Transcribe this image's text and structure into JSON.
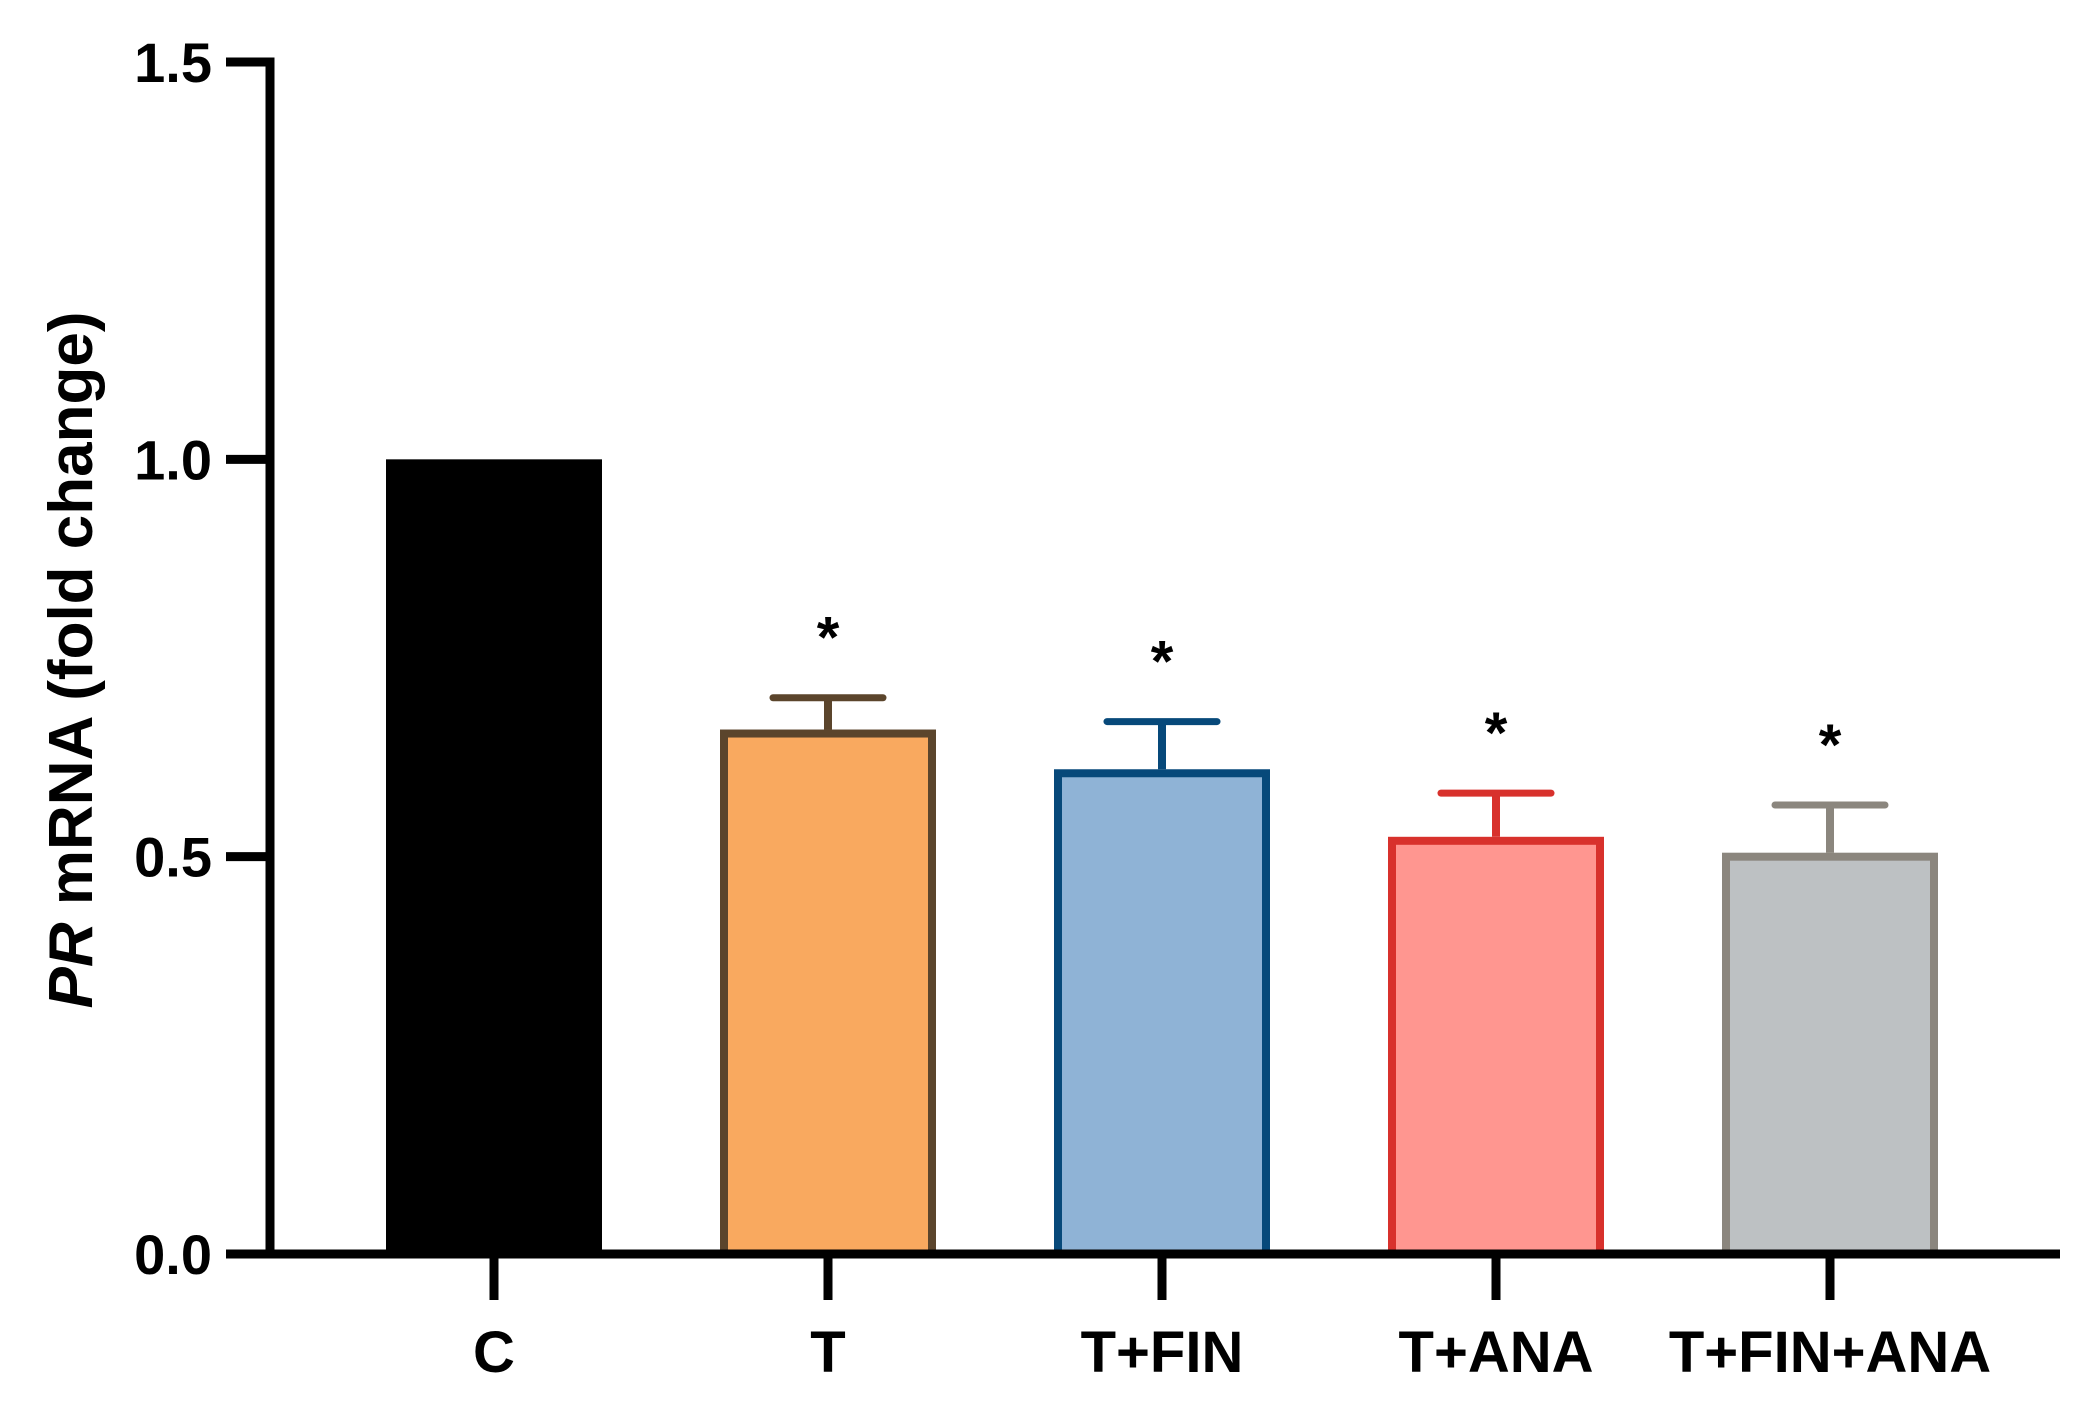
{
  "chart_data": {
    "type": "bar",
    "ylabel_italic": "PR",
    "ylabel_rest": " mRNA (fold change)",
    "ylim": [
      0,
      1.5
    ],
    "yticks": [
      {
        "value": 0.0,
        "label": "0.0"
      },
      {
        "value": 0.5,
        "label": "0.5"
      },
      {
        "value": 1.0,
        "label": "1.0"
      },
      {
        "value": 1.5,
        "label": "1.5"
      }
    ],
    "categories": [
      "C",
      "T",
      "T+FIN",
      "T+ANA",
      "T+FIN+ANA"
    ],
    "values": [
      1.0,
      0.66,
      0.61,
      0.525,
      0.505
    ],
    "errors": [
      0.0,
      0.04,
      0.06,
      0.055,
      0.06
    ],
    "significance": [
      "",
      "*",
      "*",
      "*",
      "*"
    ],
    "fill_colors": [
      "#000000",
      "#F9A95F",
      "#8FB3D6",
      "#FF9690",
      "#BDC1C3"
    ],
    "edge_colors": [
      "#000000",
      "#5B452C",
      "#07497A",
      "#D8312C",
      "#8B867E"
    ],
    "grid": false,
    "legend": "none"
  }
}
